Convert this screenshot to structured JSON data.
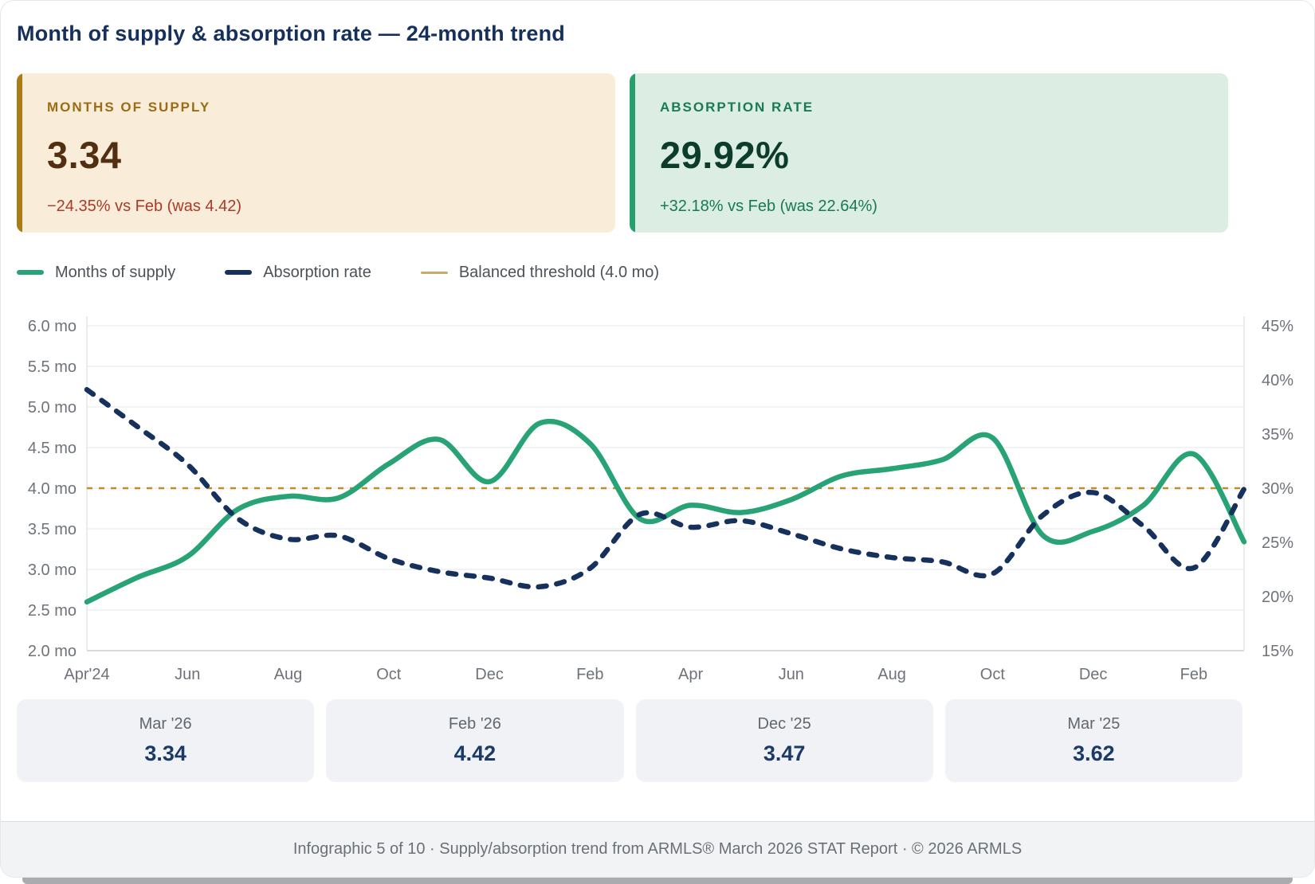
{
  "header": {
    "title": "Month of supply & absorption rate — 24-month trend"
  },
  "stat_cards": {
    "supply": {
      "label": "MONTHS OF SUPPLY",
      "value": "3.34",
      "delta": "−24.35% vs Feb (was 4.42)",
      "bg_color": "#f9ecd9",
      "accent_color": "#ad7b15",
      "label_color": "#9a6c15",
      "value_color": "#512f10",
      "delta_color": "#ab3a28"
    },
    "absorption": {
      "label": "ABSORPTION RATE",
      "value": "29.92%",
      "delta": "+32.18% vs Feb (was 22.64%)",
      "bg_color": "#dcede4",
      "accent_color": "#27a06d",
      "label_color": "#1a7a57",
      "value_color": "#0c3d2c",
      "delta_color": "#177a53"
    }
  },
  "legend": [
    {
      "label": "Months of supply",
      "color": "#28a376",
      "thin": false
    },
    {
      "label": "Absorption rate",
      "color": "#16325c",
      "thin": false
    },
    {
      "label": "Balanced threshold (4.0 mo)",
      "color": "#c9ab6d",
      "thin": true
    }
  ],
  "chart_data": {
    "type": "line",
    "x": [
      "Apr '24",
      "May '24",
      "Jun '24",
      "Jul '24",
      "Aug '24",
      "Sep '24",
      "Oct '24",
      "Nov '24",
      "Dec '24",
      "Jan '25",
      "Feb '25",
      "Mar '25",
      "Apr '25",
      "May '25",
      "Jun '25",
      "Jul '25",
      "Aug '25",
      "Sep '25",
      "Oct '25",
      "Nov '25",
      "Dec '25",
      "Jan '26",
      "Feb '26",
      "Mar '26"
    ],
    "x_tick_labels": [
      "Apr'24",
      "Jun",
      "Aug",
      "Oct",
      "Dec",
      "Feb",
      "Apr",
      "Jun",
      "Aug",
      "Oct",
      "Dec",
      "Feb"
    ],
    "series": [
      {
        "name": "Months of supply",
        "axis": "left",
        "color": "#28a376",
        "style": "solid",
        "values": [
          2.6,
          2.9,
          3.16,
          3.74,
          3.9,
          3.88,
          4.3,
          4.6,
          4.08,
          4.8,
          4.55,
          3.62,
          3.79,
          3.7,
          3.86,
          4.15,
          4.24,
          4.35,
          4.62,
          3.42,
          3.47,
          3.79,
          4.42,
          3.34
        ]
      },
      {
        "name": "Absorption rate",
        "axis": "right",
        "color": "#16325c",
        "style": "dashed",
        "values": [
          39.1,
          35.7,
          32.2,
          27.2,
          25.3,
          25.6,
          23.5,
          22.3,
          21.7,
          20.9,
          22.6,
          27.6,
          26.4,
          27.0,
          25.8,
          24.4,
          23.6,
          23.2,
          22.1,
          27.5,
          29.6,
          26.5,
          22.64,
          29.92
        ]
      }
    ],
    "threshold": {
      "label": "Balanced threshold (4.0 mo)",
      "value": 4.0,
      "axis": "left",
      "color": "#c08a2d"
    },
    "left_axis": {
      "min": 2.0,
      "max": 6.0,
      "step": 0.5,
      "unit": " mo",
      "tick_labels": [
        "6.0 mo",
        "5.5 mo",
        "5.0 mo",
        "4.5 mo",
        "4.0 mo",
        "3.5 mo",
        "3.0 mo",
        "2.5 mo",
        "2.0 mo"
      ]
    },
    "right_axis": {
      "min": 15,
      "max": 45,
      "step": 5,
      "unit": "%",
      "tick_labels": [
        "45%",
        "40%",
        "35%",
        "30%",
        "25%",
        "20%",
        "15%"
      ]
    },
    "grid": true,
    "legend_position": "top",
    "title": "Month of supply & absorption rate — 24-month trend"
  },
  "summary_cards": [
    {
      "period": "Mar '26",
      "value": "3.34"
    },
    {
      "period": "Feb '26",
      "value": "4.42"
    },
    {
      "period": "Dec '25",
      "value": "3.47"
    },
    {
      "period": "Mar '25",
      "value": "3.62"
    }
  ],
  "footer": {
    "text": "Infographic 5 of 10 · Supply/absorption trend from ARMLS® March 2026 STAT Report · © 2026 ARMLS"
  }
}
